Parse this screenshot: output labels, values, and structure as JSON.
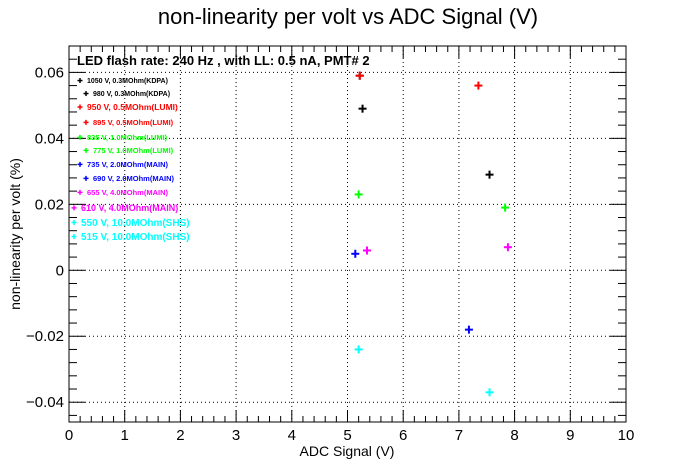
{
  "chart_data": {
    "type": "scatter",
    "title": "non-linearity per volt vs ADC Signal (V)",
    "xlabel": "ADC Signal (V)",
    "ylabel": "non-linearity per volt (%)",
    "xlim": [
      0,
      10
    ],
    "ylim": [
      -0.046,
      0.068
    ],
    "x_ticks": [
      0,
      1,
      2,
      3,
      4,
      5,
      6,
      7,
      8,
      9,
      10
    ],
    "x_tick_labels": [
      "0",
      "1",
      "2",
      "3",
      "4",
      "5",
      "6",
      "7",
      "8",
      "9",
      "10"
    ],
    "y_ticks": [
      -0.04,
      -0.02,
      0,
      0.02,
      0.04,
      0.06
    ],
    "y_tick_labels": [
      "−0.04",
      "−0.02",
      "0",
      "0.02",
      "0.04",
      "0.06"
    ],
    "grid": true,
    "legend_position": "top-left",
    "legend_header": "LED flash rate: 240 Hz , with LL: 0.5 nA, PMT# 2",
    "series": [
      {
        "name": "1050 V, 0.3MOhm(KDPA)",
        "color": "#000000",
        "points": [
          [
            5.22,
            0.059
          ]
        ]
      },
      {
        "name": "980 V, 0.3MOhm(KDPA)",
        "color": "#000000",
        "points": [
          [
            5.27,
            0.049
          ],
          [
            7.55,
            0.029
          ]
        ]
      },
      {
        "name": "950 V, 0.5MOhm(LUMI)",
        "color": "#ff0000",
        "points": [
          [
            7.35,
            0.056
          ]
        ]
      },
      {
        "name": "895 V, 0.5MOhm(LUMI)",
        "color": "#ff0000",
        "points": [
          [
            5.22,
            0.059
          ]
        ]
      },
      {
        "name": "835 V, 1.0MOhm(LUMI)",
        "color": "#00ff00",
        "points": [
          [
            7.83,
            0.019
          ]
        ]
      },
      {
        "name": "775 V, 1.0MOhm(LUMI)",
        "color": "#00ff00",
        "points": [
          [
            5.2,
            0.023
          ]
        ]
      },
      {
        "name": "735 V, 2.0MOhm(MAIN)",
        "color": "#0000ff",
        "points": [
          [
            7.18,
            -0.018
          ]
        ]
      },
      {
        "name": "690 V, 2.0MOhm(MAIN)",
        "color": "#0000ff",
        "points": [
          [
            5.14,
            0.005
          ]
        ]
      },
      {
        "name": "655 V, 4.0MOhm(MAIN)",
        "color": "#ff00ff",
        "points": [
          [
            7.88,
            0.007
          ]
        ]
      },
      {
        "name": "610 V, 4.0MOhm(MAIN)",
        "color": "#ff00ff",
        "points": [
          [
            5.35,
            0.006
          ]
        ]
      },
      {
        "name": "550 V, 10.0MOhm(SHS)",
        "color": "#00ffff",
        "points": [
          [
            7.55,
            -0.037
          ]
        ]
      },
      {
        "name": "515 V, 10.0MOhm(SHS)",
        "color": "#00ffff",
        "points": [
          [
            5.2,
            -0.024
          ]
        ]
      }
    ]
  }
}
